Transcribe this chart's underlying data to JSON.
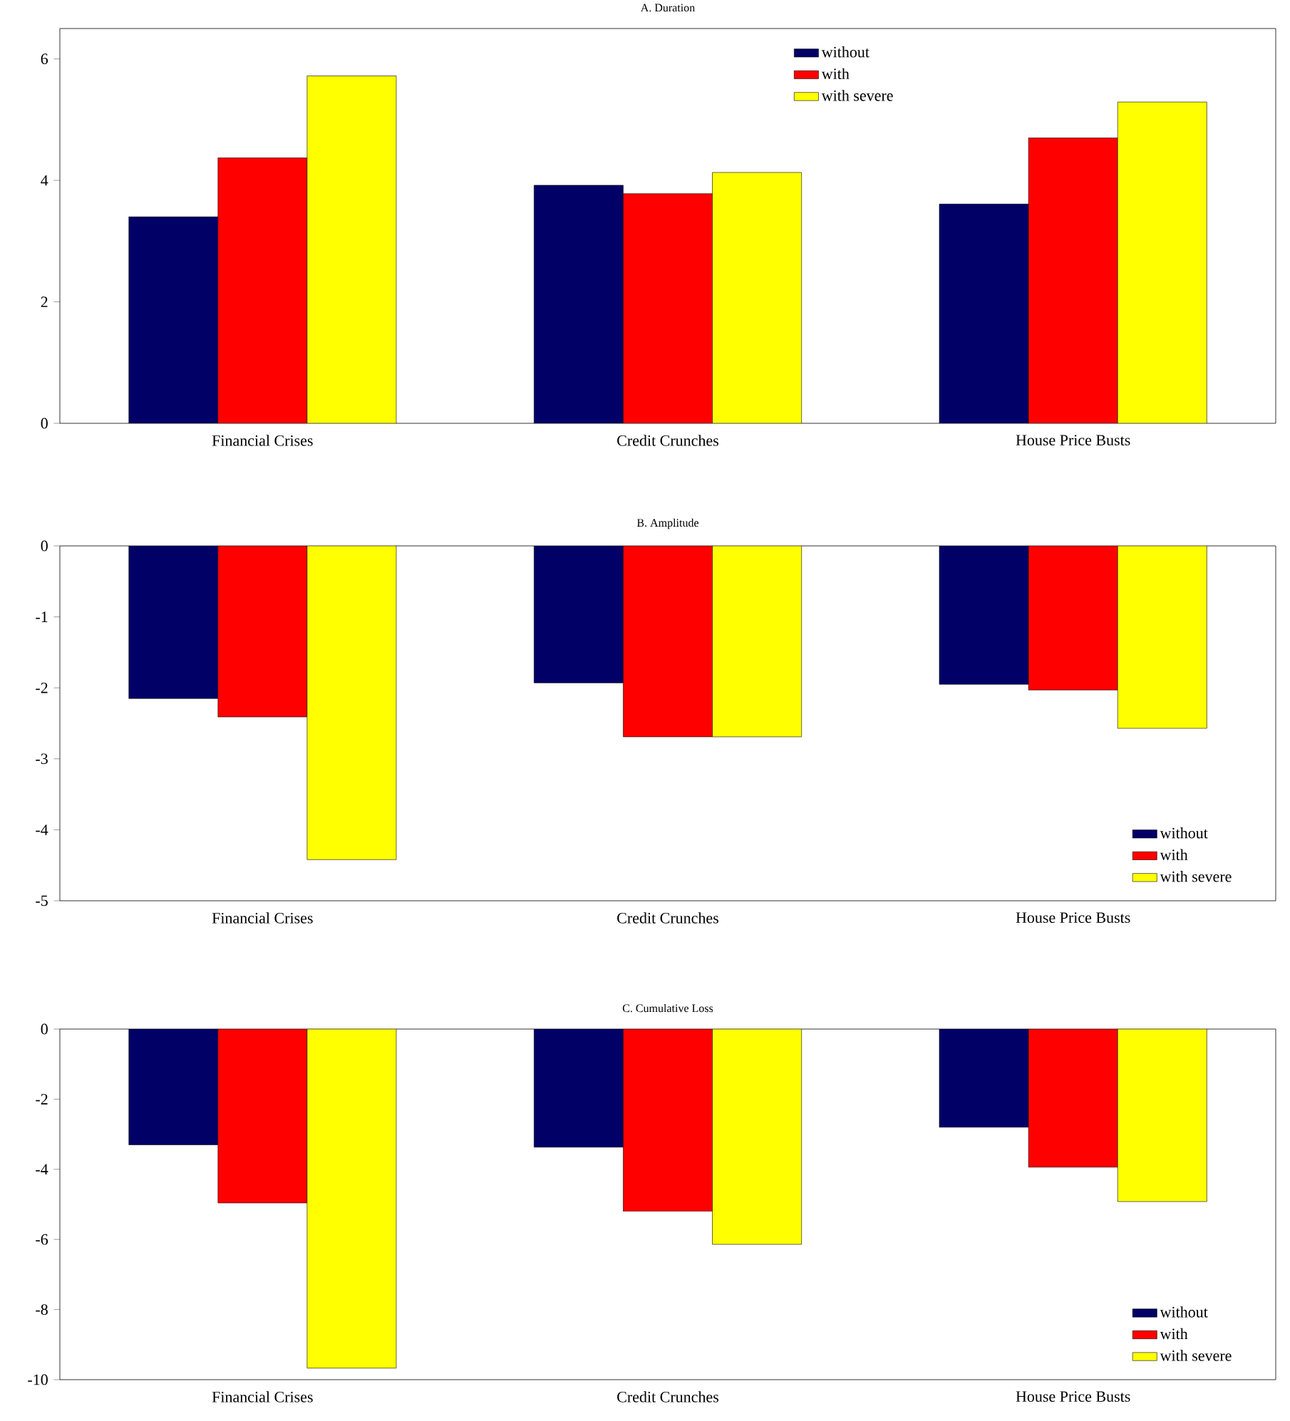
{
  "chart_data": [
    {
      "type": "bar",
      "title": "A. Duration",
      "categories": [
        "Financial Crises",
        "Credit Crunches",
        "House Price Busts"
      ],
      "series": [
        {
          "name": "without",
          "color": "#000066",
          "values": [
            3.4,
            3.92,
            3.61
          ]
        },
        {
          "name": "with",
          "color": "#ff0000",
          "values": [
            4.37,
            3.78,
            4.7
          ]
        },
        {
          "name": "with severe",
          "color": "#ffff00",
          "values": [
            5.72,
            4.13,
            5.29
          ]
        }
      ],
      "ylim": [
        0,
        6.5
      ],
      "yticks": [
        0,
        2,
        4,
        6
      ],
      "legend": "top"
    },
    {
      "type": "bar",
      "title": "B. Amplitude",
      "categories": [
        "Financial Crises",
        "Credit Crunches",
        "House Price Busts"
      ],
      "series": [
        {
          "name": "without",
          "color": "#000066",
          "values": [
            -2.15,
            -1.93,
            -1.95
          ]
        },
        {
          "name": "with",
          "color": "#ff0000",
          "values": [
            -2.41,
            -2.69,
            -2.03
          ]
        },
        {
          "name": "with severe",
          "color": "#ffff00",
          "values": [
            -4.42,
            -2.69,
            -2.57
          ]
        }
      ],
      "ylim": [
        -5,
        0
      ],
      "yticks": [
        -5,
        -4,
        -3,
        -2,
        -1,
        0
      ],
      "legend": "bottom right"
    },
    {
      "type": "bar",
      "title": "C. Cumulative Loss",
      "categories": [
        "Financial Crises",
        "Credit Crunches",
        "House Price Busts"
      ],
      "series": [
        {
          "name": "without",
          "color": "#000066",
          "values": [
            -3.3,
            -3.37,
            -2.8
          ]
        },
        {
          "name": "with",
          "color": "#ff0000",
          "values": [
            -4.96,
            -5.2,
            -3.94
          ]
        },
        {
          "name": "with severe",
          "color": "#ffff00",
          "values": [
            -9.67,
            -6.14,
            -4.92
          ]
        }
      ],
      "ylim": [
        -10,
        0
      ],
      "yticks": [
        -10,
        -8,
        -6,
        -4,
        -2,
        0
      ],
      "legend": "bottom right"
    }
  ]
}
